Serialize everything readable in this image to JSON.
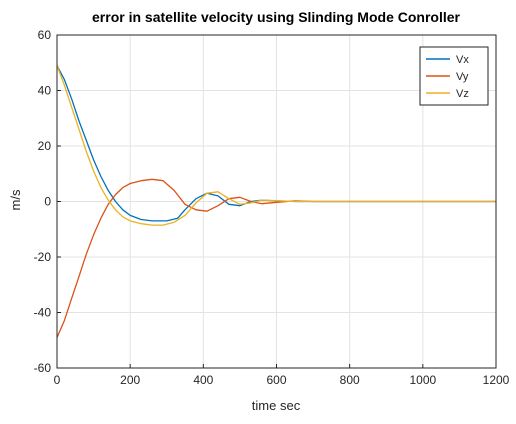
{
  "chart_data": {
    "type": "line",
    "title": "error in satellite velocity using Slinding Mode Conroller",
    "xlabel": "time sec",
    "ylabel": "m/s",
    "xlim": [
      0,
      1200
    ],
    "ylim": [
      -60,
      60
    ],
    "xticks": [
      0,
      200,
      400,
      600,
      800,
      1000,
      1200
    ],
    "yticks": [
      -60,
      -40,
      -20,
      0,
      20,
      40,
      60
    ],
    "grid": true,
    "legend_position": "top-right",
    "series": [
      {
        "name": "Vx",
        "color": "#0072BD",
        "x": [
          0,
          20,
          40,
          60,
          80,
          100,
          120,
          140,
          160,
          180,
          200,
          230,
          260,
          300,
          330,
          350,
          380,
          410,
          440,
          470,
          500,
          530,
          560,
          600,
          650,
          700,
          800,
          1000,
          1200
        ],
        "y": [
          49,
          44,
          37,
          29,
          22,
          15,
          9,
          4,
          0,
          -3,
          -5,
          -6.5,
          -7,
          -7,
          -6,
          -3,
          1,
          3,
          2,
          -1,
          -1.5,
          0,
          0.5,
          0.2,
          0,
          0,
          0,
          0,
          0
        ]
      },
      {
        "name": "Vy",
        "color": "#D95319",
        "x": [
          0,
          20,
          40,
          60,
          80,
          100,
          120,
          140,
          160,
          180,
          200,
          230,
          260,
          290,
          320,
          350,
          380,
          410,
          440,
          470,
          500,
          530,
          560,
          600,
          650,
          700,
          800,
          1000,
          1200
        ],
        "y": [
          -49,
          -43,
          -35,
          -27,
          -19,
          -12,
          -6,
          -1,
          2.5,
          5,
          6.5,
          7.5,
          8,
          7.5,
          4,
          -1,
          -3,
          -3.5,
          -1.5,
          1,
          1.5,
          0,
          -0.8,
          -0.3,
          0.2,
          0,
          0,
          0,
          0
        ]
      },
      {
        "name": "Vz",
        "color": "#EDB120",
        "x": [
          0,
          20,
          40,
          60,
          80,
          100,
          120,
          140,
          160,
          180,
          200,
          230,
          260,
          290,
          320,
          350,
          380,
          410,
          440,
          470,
          500,
          530,
          560,
          600,
          650,
          700,
          800,
          1000,
          1200
        ],
        "y": [
          49,
          42,
          34,
          26,
          18,
          11,
          5,
          0.5,
          -3,
          -5.5,
          -7,
          -8,
          -8.5,
          -8.5,
          -7.5,
          -5,
          -0.5,
          3,
          3.5,
          1,
          -1,
          -0.5,
          0.5,
          0.3,
          0,
          0,
          0,
          0,
          0
        ]
      }
    ]
  }
}
